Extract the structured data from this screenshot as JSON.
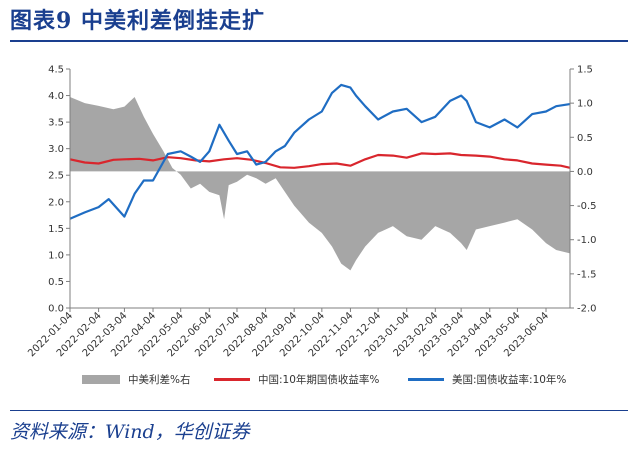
{
  "header": {
    "title": "图表9  中美利差倒挂走扩"
  },
  "footer": {
    "source": "资料来源：Wind，华创证券"
  },
  "colors": {
    "spread": "#a6a6a6",
    "china": "#d9262d",
    "us": "#1f6dc3",
    "title": "#1a3f8f"
  },
  "chart_data": {
    "type": "line",
    "x_ticks": [
      "2022-01-04",
      "2022-02-04",
      "2022-03-04",
      "2022-04-04",
      "2022-05-04",
      "2022-06-04",
      "2022-07-04",
      "2022-08-04",
      "2022-09-04",
      "2022-10-04",
      "2022-11-04",
      "2022-12-04",
      "2023-01-04",
      "2023-02-04",
      "2023-03-04",
      "2023-04-04",
      "2023-05-04",
      "2023-06-04"
    ],
    "y_left": {
      "ticks": [
        "0.0",
        "0.5",
        "1.0",
        "1.5",
        "2.0",
        "2.5",
        "3.0",
        "3.5",
        "4.0",
        "4.5"
      ],
      "range": [
        0,
        4.5
      ]
    },
    "y_right": {
      "ticks": [
        "-2.0",
        "-1.5",
        "-1.0",
        "-0.5",
        "0.0",
        "0.5",
        "1.0",
        "1.5"
      ],
      "range": [
        -2.0,
        1.5
      ]
    },
    "legend_position": "bottom",
    "series": [
      {
        "name": "中美利差%右",
        "axis": "right",
        "kind": "area",
        "points": [
          [
            "2022-01-04",
            1.09
          ],
          [
            "2022-01-20",
            1.0
          ],
          [
            "2022-02-04",
            0.96
          ],
          [
            "2022-02-20",
            0.91
          ],
          [
            "2022-03-04",
            0.95
          ],
          [
            "2022-03-15",
            1.09
          ],
          [
            "2022-03-25",
            0.8
          ],
          [
            "2022-04-04",
            0.55
          ],
          [
            "2022-04-15",
            0.3
          ],
          [
            "2022-04-25",
            0.05
          ],
          [
            "2022-05-04",
            -0.05
          ],
          [
            "2022-05-15",
            -0.25
          ],
          [
            "2022-05-25",
            -0.18
          ],
          [
            "2022-06-04",
            -0.3
          ],
          [
            "2022-06-15",
            -0.35
          ],
          [
            "2022-06-20",
            -0.7
          ],
          [
            "2022-06-25",
            -0.2
          ],
          [
            "2022-07-04",
            -0.15
          ],
          [
            "2022-07-15",
            -0.05
          ],
          [
            "2022-07-25",
            -0.1
          ],
          [
            "2022-08-04",
            -0.18
          ],
          [
            "2022-08-15",
            -0.1
          ],
          [
            "2022-08-25",
            -0.3
          ],
          [
            "2022-09-04",
            -0.5
          ],
          [
            "2022-09-20",
            -0.75
          ],
          [
            "2022-10-04",
            -0.9
          ],
          [
            "2022-10-15",
            -1.1
          ],
          [
            "2022-10-25",
            -1.35
          ],
          [
            "2022-11-04",
            -1.45
          ],
          [
            "2022-11-10",
            -1.3
          ],
          [
            "2022-11-20",
            -1.1
          ],
          [
            "2022-12-04",
            -0.9
          ],
          [
            "2022-12-20",
            -0.8
          ],
          [
            "2023-01-04",
            -0.95
          ],
          [
            "2023-01-20",
            -1.0
          ],
          [
            "2023-02-04",
            -0.8
          ],
          [
            "2023-02-20",
            -0.9
          ],
          [
            "2023-03-04",
            -1.05
          ],
          [
            "2023-03-10",
            -1.15
          ],
          [
            "2023-03-20",
            -0.85
          ],
          [
            "2023-04-04",
            -0.8
          ],
          [
            "2023-04-20",
            -0.75
          ],
          [
            "2023-05-04",
            -0.7
          ],
          [
            "2023-05-20",
            -0.85
          ],
          [
            "2023-06-04",
            -1.05
          ],
          [
            "2023-06-15",
            -1.15
          ],
          [
            "2023-06-30",
            -1.2
          ]
        ]
      },
      {
        "name": "中国:10年期国债收益率%",
        "axis": "left",
        "kind": "line",
        "points": [
          [
            "2022-01-04",
            2.8
          ],
          [
            "2022-01-20",
            2.74
          ],
          [
            "2022-02-04",
            2.72
          ],
          [
            "2022-02-20",
            2.79
          ],
          [
            "2022-03-04",
            2.8
          ],
          [
            "2022-03-20",
            2.81
          ],
          [
            "2022-04-04",
            2.78
          ],
          [
            "2022-04-20",
            2.84
          ],
          [
            "2022-05-04",
            2.82
          ],
          [
            "2022-05-20",
            2.78
          ],
          [
            "2022-06-04",
            2.76
          ],
          [
            "2022-06-20",
            2.8
          ],
          [
            "2022-07-04",
            2.82
          ],
          [
            "2022-07-20",
            2.79
          ],
          [
            "2022-08-04",
            2.73
          ],
          [
            "2022-08-20",
            2.65
          ],
          [
            "2022-09-04",
            2.64
          ],
          [
            "2022-09-20",
            2.67
          ],
          [
            "2022-10-04",
            2.71
          ],
          [
            "2022-10-20",
            2.72
          ],
          [
            "2022-11-04",
            2.68
          ],
          [
            "2022-11-20",
            2.8
          ],
          [
            "2022-12-04",
            2.88
          ],
          [
            "2022-12-20",
            2.87
          ],
          [
            "2023-01-04",
            2.83
          ],
          [
            "2023-01-20",
            2.91
          ],
          [
            "2023-02-04",
            2.9
          ],
          [
            "2023-02-20",
            2.91
          ],
          [
            "2023-03-04",
            2.88
          ],
          [
            "2023-03-20",
            2.87
          ],
          [
            "2023-04-04",
            2.85
          ],
          [
            "2023-04-20",
            2.8
          ],
          [
            "2023-05-04",
            2.78
          ],
          [
            "2023-05-20",
            2.72
          ],
          [
            "2023-06-04",
            2.7
          ],
          [
            "2023-06-20",
            2.68
          ],
          [
            "2023-06-30",
            2.64
          ]
        ]
      },
      {
        "name": "美国:国债收益率:10年%",
        "axis": "left",
        "kind": "line",
        "points": [
          [
            "2022-01-04",
            1.68
          ],
          [
            "2022-01-20",
            1.8
          ],
          [
            "2022-02-04",
            1.9
          ],
          [
            "2022-02-15",
            2.05
          ],
          [
            "2022-03-04",
            1.72
          ],
          [
            "2022-03-15",
            2.15
          ],
          [
            "2022-03-25",
            2.4
          ],
          [
            "2022-04-04",
            2.4
          ],
          [
            "2022-04-20",
            2.9
          ],
          [
            "2022-05-04",
            2.95
          ],
          [
            "2022-05-15",
            2.85
          ],
          [
            "2022-05-25",
            2.75
          ],
          [
            "2022-06-04",
            2.95
          ],
          [
            "2022-06-15",
            3.45
          ],
          [
            "2022-06-25",
            3.15
          ],
          [
            "2022-07-04",
            2.9
          ],
          [
            "2022-07-15",
            2.95
          ],
          [
            "2022-07-25",
            2.7
          ],
          [
            "2022-08-04",
            2.75
          ],
          [
            "2022-08-15",
            2.95
          ],
          [
            "2022-08-25",
            3.05
          ],
          [
            "2022-09-04",
            3.3
          ],
          [
            "2022-09-20",
            3.55
          ],
          [
            "2022-10-04",
            3.7
          ],
          [
            "2022-10-15",
            4.05
          ],
          [
            "2022-10-25",
            4.2
          ],
          [
            "2022-11-04",
            4.15
          ],
          [
            "2022-11-10",
            4.0
          ],
          [
            "2022-11-20",
            3.8
          ],
          [
            "2022-12-04",
            3.55
          ],
          [
            "2022-12-20",
            3.7
          ],
          [
            "2023-01-04",
            3.75
          ],
          [
            "2023-01-20",
            3.5
          ],
          [
            "2023-02-04",
            3.6
          ],
          [
            "2023-02-20",
            3.9
          ],
          [
            "2023-03-04",
            4.0
          ],
          [
            "2023-03-10",
            3.9
          ],
          [
            "2023-03-20",
            3.5
          ],
          [
            "2023-04-04",
            3.4
          ],
          [
            "2023-04-20",
            3.55
          ],
          [
            "2023-05-04",
            3.4
          ],
          [
            "2023-05-20",
            3.65
          ],
          [
            "2023-06-04",
            3.7
          ],
          [
            "2023-06-15",
            3.8
          ],
          [
            "2023-06-30",
            3.84
          ]
        ]
      }
    ]
  }
}
